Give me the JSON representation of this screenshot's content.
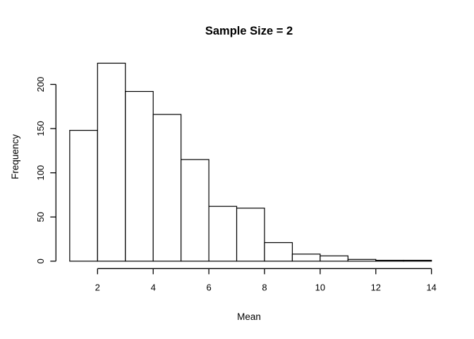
{
  "chart_data": {
    "type": "histogram",
    "title": "Sample Size = 2",
    "xlabel": "Mean",
    "ylabel": "Frequency",
    "bin_start": 1,
    "bin_width": 1,
    "bin_edges": [
      1,
      2,
      3,
      4,
      5,
      6,
      7,
      8,
      9,
      10,
      11,
      12,
      13,
      14
    ],
    "counts": [
      148,
      224,
      192,
      166,
      115,
      62,
      60,
      21,
      8,
      6,
      2,
      1,
      1
    ],
    "x_ticks": [
      2,
      4,
      6,
      8,
      10,
      12,
      14
    ],
    "y_ticks": [
      0,
      50,
      100,
      150,
      200
    ],
    "xlim": [
      1,
      14
    ],
    "ylim": [
      0,
      225
    ],
    "grid": false,
    "legend": false,
    "bar_fill": "#ffffff",
    "bar_stroke": "#000000",
    "axis_color": "#000000",
    "text_color": "#000000",
    "background": "#ffffff"
  }
}
